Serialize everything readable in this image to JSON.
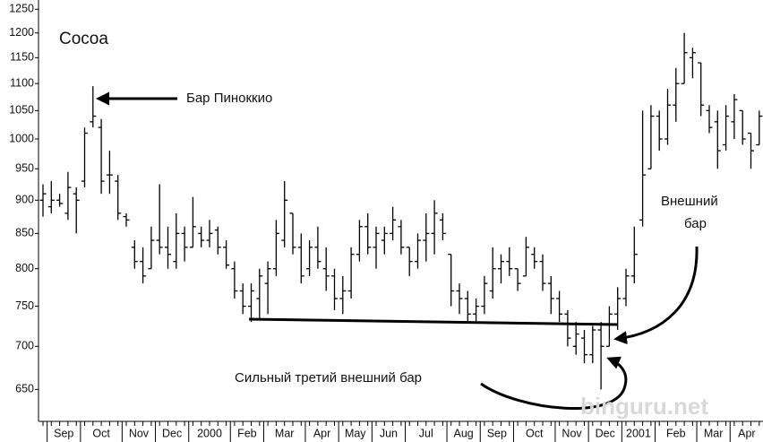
{
  "chart_data": {
    "type": "ohlc",
    "title": "Cocoa",
    "categories": [
      null,
      "Sep",
      null,
      null,
      null,
      "Oct",
      null,
      null,
      null,
      null,
      "Nov",
      null,
      null,
      null,
      "Dec",
      null,
      null,
      null,
      "2000",
      null,
      null,
      null,
      null,
      "Feb",
      null,
      null,
      null,
      "Mar",
      null,
      null,
      null,
      null,
      "Apr",
      null,
      null,
      null,
      "May",
      null,
      null,
      null,
      "Jun",
      null,
      null,
      null,
      "Jul",
      null,
      null,
      null,
      null,
      "Aug",
      null,
      null,
      null,
      "Sep",
      null,
      null,
      null,
      "Oct",
      null,
      null,
      null,
      null,
      "Nov",
      null,
      null,
      null,
      "Dec",
      null,
      null,
      null,
      "2001",
      null,
      null,
      null,
      "Feb",
      null,
      null,
      null,
      null,
      "Mar",
      null,
      null,
      null,
      "Apr",
      null,
      null,
      null
    ],
    "open": [
      900,
      890,
      900,
      880,
      910,
      930,
      1030,
      1020,
      940,
      930,
      875,
      830,
      810,
      800,
      840,
      830,
      810,
      850,
      830,
      850,
      840,
      855,
      830,
      800,
      770,
      750,
      760,
      780,
      800,
      840,
      880,
      830,
      800,
      830,
      800,
      790,
      760,
      770,
      820,
      860,
      830,
      840,
      850,
      860,
      830,
      810,
      840,
      850,
      870,
      820,
      770,
      760,
      740,
      750,
      770,
      800,
      810,
      800,
      790,
      820,
      810,
      780,
      760,
      740,
      700,
      710,
      690,
      720,
      700,
      740,
      760,
      790,
      870,
      950,
      1040,
      1000,
      1060,
      1100,
      1150,
      1140,
      1050,
      1030,
      990,
      1030,
      1050,
      1010,
      990
    ],
    "high": [
      925,
      930,
      910,
      945,
      920,
      1020,
      1095,
      1035,
      980,
      940,
      880,
      840,
      830,
      860,
      925,
      860,
      880,
      860,
      905,
      860,
      870,
      860,
      840,
      810,
      780,
      780,
      800,
      810,
      870,
      930,
      880,
      850,
      840,
      860,
      830,
      800,
      790,
      830,
      870,
      880,
      860,
      860,
      890,
      870,
      830,
      850,
      880,
      900,
      880,
      820,
      780,
      770,
      760,
      790,
      830,
      820,
      830,
      800,
      845,
      830,
      820,
      790,
      770,
      745,
      730,
      720,
      725,
      730,
      750,
      775,
      800,
      860,
      1050,
      1060,
      1050,
      1090,
      1130,
      1200,
      1170,
      1140,
      1060,
      1050,
      1060,
      1080,
      1050,
      1010,
      1050
    ],
    "low": [
      875,
      880,
      890,
      870,
      850,
      920,
      1020,
      910,
      910,
      870,
      860,
      800,
      780,
      800,
      820,
      800,
      800,
      810,
      830,
      830,
      830,
      820,
      800,
      760,
      740,
      730,
      735,
      740,
      790,
      830,
      820,
      780,
      790,
      800,
      770,
      745,
      740,
      760,
      810,
      820,
      800,
      820,
      840,
      820,
      790,
      800,
      810,
      820,
      840,
      750,
      740,
      730,
      730,
      740,
      760,
      780,
      790,
      770,
      790,
      800,
      770,
      740,
      730,
      700,
      690,
      680,
      680,
      650,
      700,
      720,
      750,
      780,
      860,
      950,
      980,
      990,
      1030,
      1100,
      1110,
      1040,
      1010,
      950,
      980,
      1000,
      990,
      950,
      990
    ],
    "close": [
      910,
      900,
      895,
      920,
      900,
      1010,
      1040,
      930,
      940,
      880,
      870,
      810,
      790,
      840,
      830,
      820,
      850,
      830,
      860,
      840,
      850,
      830,
      805,
      770,
      750,
      770,
      790,
      800,
      850,
      900,
      830,
      790,
      830,
      810,
      790,
      760,
      770,
      820,
      860,
      830,
      850,
      850,
      870,
      830,
      810,
      840,
      850,
      880,
      850,
      770,
      760,
      740,
      750,
      780,
      800,
      810,
      800,
      780,
      830,
      810,
      780,
      760,
      740,
      710,
      715,
      690,
      720,
      700,
      740,
      760,
      790,
      820,
      940,
      1040,
      1000,
      1060,
      1100,
      1160,
      1160,
      1060,
      1020,
      980,
      1040,
      1070,
      1000,
      980,
      1040
    ],
    "color": "#000000",
    "log_scale": true,
    "ylim": [
      620,
      1270
    ],
    "yticks": [
      650,
      700,
      750,
      800,
      850,
      900,
      950,
      1000,
      1050,
      1100,
      1150,
      1200,
      1250
    ],
    "annotations": [
      "Бар Пиноккио",
      "Внешний",
      "бар",
      "Сильный третий внешний бар"
    ],
    "watermark": "binguru.net"
  }
}
